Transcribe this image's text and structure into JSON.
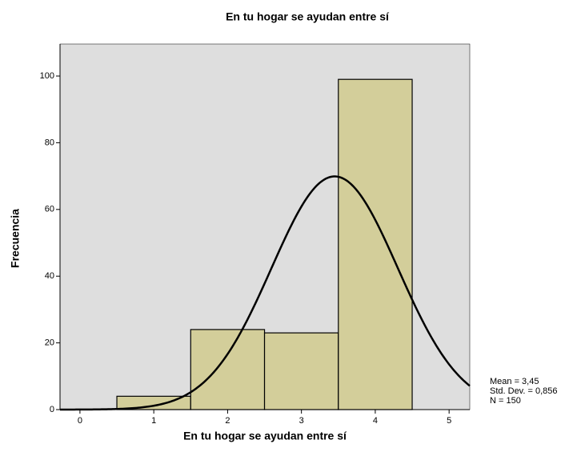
{
  "chart_data": {
    "type": "histogram",
    "title": "En tu hogar se ayudan entre sí",
    "x_label": "En tu hogar se ayudan entre sí",
    "y_label": "Frecuencia",
    "bins": [
      0.5,
      1.5,
      2.5,
      3.5,
      4.5
    ],
    "values": [
      4,
      24,
      23,
      99
    ],
    "color": "#d3ce9a",
    "xlim": [
      -0.27,
      5.28
    ],
    "xticks": [
      0,
      1,
      2,
      3,
      4,
      5
    ],
    "ylim": [
      0,
      109.6
    ],
    "yticks": [
      0,
      20,
      40,
      60,
      80,
      100
    ],
    "normal_curve": {
      "mean": 3.45,
      "sd": 0.856,
      "n": 150
    },
    "annotations": [
      "Mean = 3,45",
      "Std. Dev. = 0,856",
      "N = 150"
    ]
  }
}
